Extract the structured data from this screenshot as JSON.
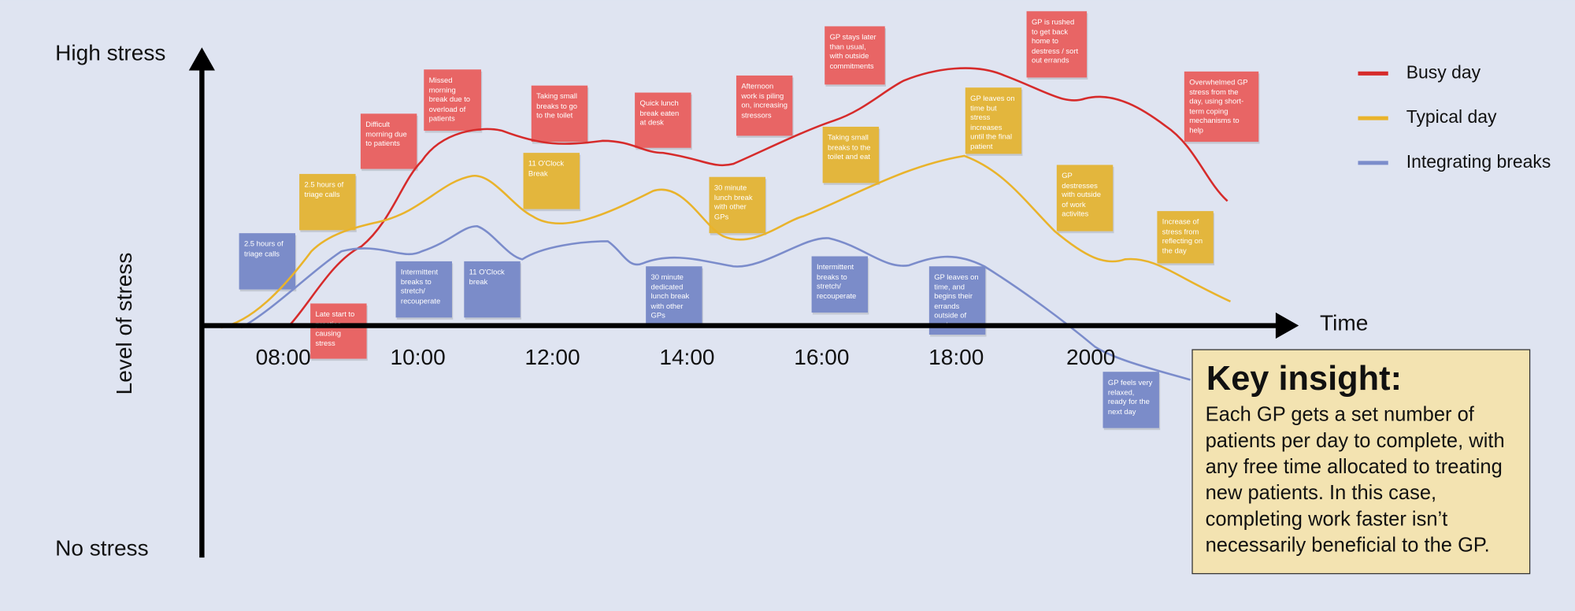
{
  "axis": {
    "high": "High stress",
    "low": "No stress",
    "y_title": "Level of stress",
    "x_title": "Time",
    "times": [
      "08:00",
      "10:00",
      "12:00",
      "14:00",
      "16:00",
      "18:00",
      "2000"
    ]
  },
  "legend": [
    "Busy day",
    "Typical day",
    "Integrating breaks"
  ],
  "notes": [
    "Late start to practice causing stress",
    "Difficult morning due to patients",
    "Missed morning break due to overload of patients",
    "Taking small breaks to go to the toilet",
    "Quick lunch break eaten at desk",
    "Afternoon work is piling on, increasing stressors",
    "GP stays later than usual, with outside commitments",
    "GP is rushed to get back home to destress / sort out errands",
    "Overwhelmed GP stress from the day, using short-term coping mechanisms to help",
    "2.5 hours of triage calls",
    "11 O'Clock Break",
    "30 minute lunch break with other GPs",
    "Taking small breaks to the toilet and eat",
    "GP leaves on time but stress increases until the final patient",
    "GP destresses with outside of work activites",
    "Increase of stress from reflecting on the day",
    "2.5 hours of triage calls",
    "Intermittent breaks to stretch/ recouperate",
    "11 O'Clock break",
    "30 minute dedicated lunch break with other GPs",
    "Intermittent breaks to stretch/ recouperate",
    "GP leaves on time, and begins their errands outside of work",
    "GP feels very relaxed, ready for the next day"
  ],
  "key_insight": {
    "title": "Key insight:",
    "body": "Each GP gets a set number of patients per day to complete, with any free time allocated to treating new patients. In this case, completing work faster isn’t necessarily beneficial to the GP."
  }
}
